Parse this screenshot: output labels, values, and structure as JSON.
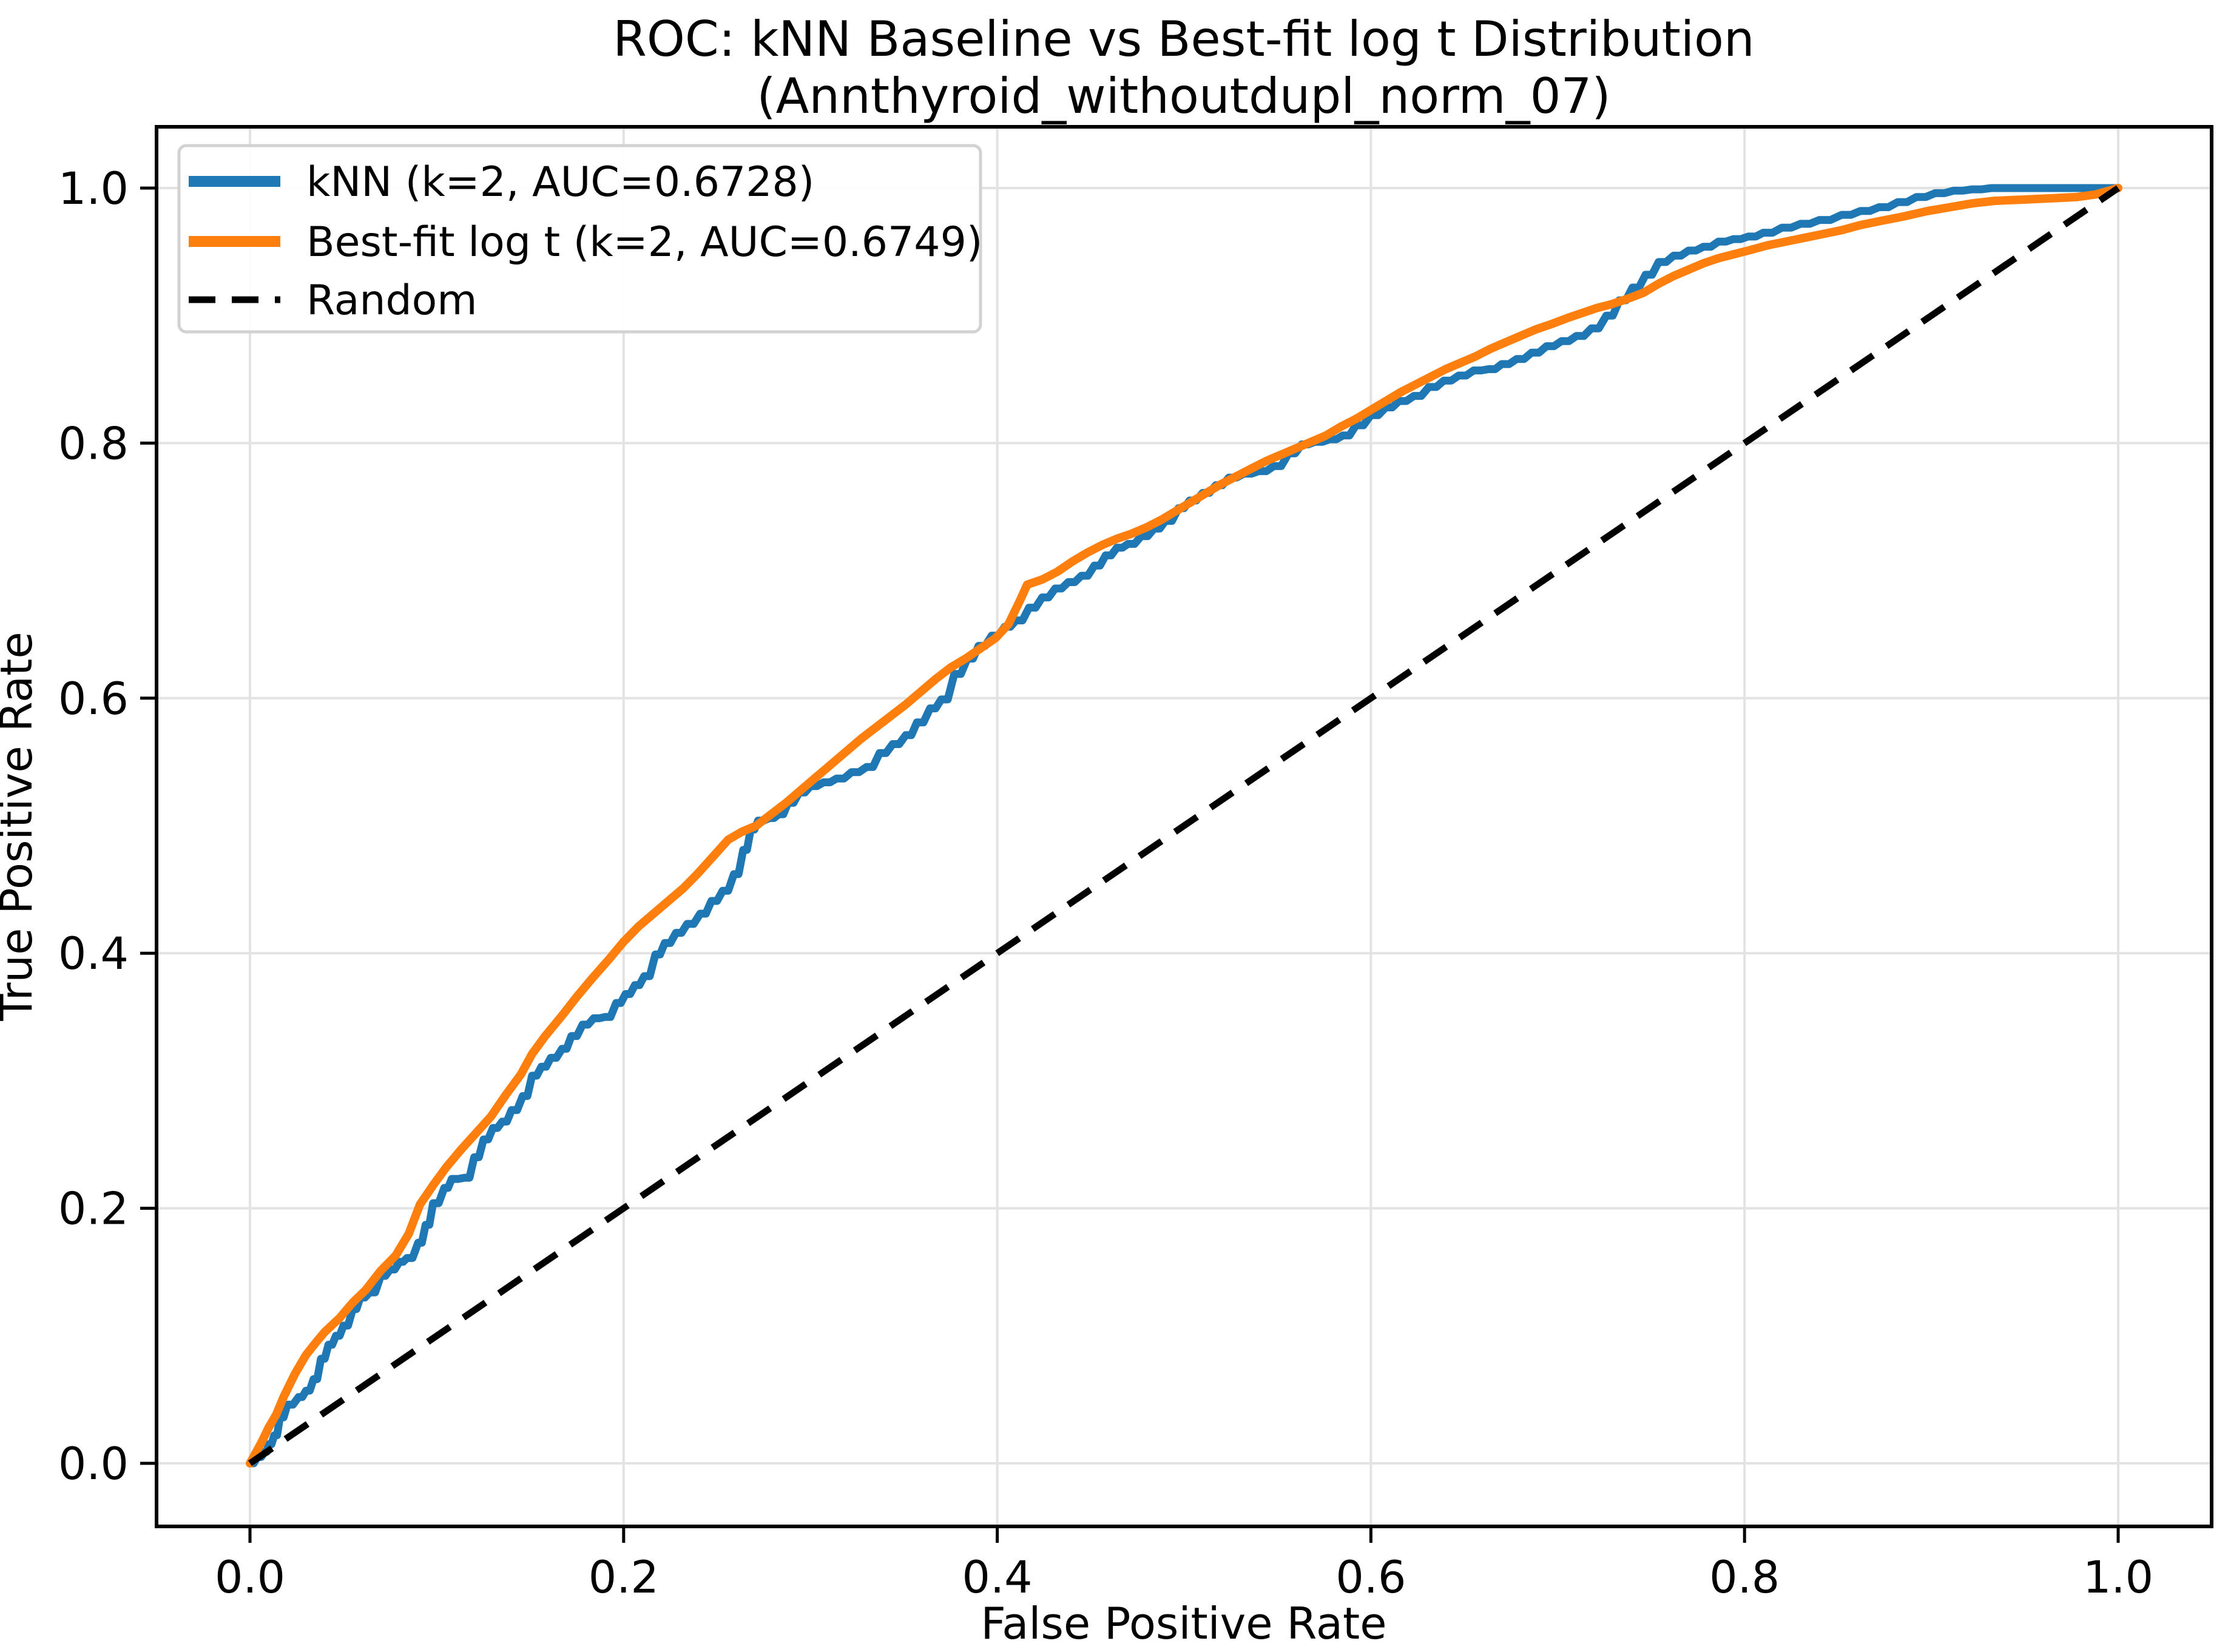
{
  "figure": {
    "title_line1": "ROC: kNN Baseline vs Best-fit log t Distribution",
    "title_line2": "(Annthyroid_withoutdupl_norm_07)"
  },
  "chart_data": {
    "type": "line",
    "title": "ROC: kNN Baseline vs Best-fit log t Distribution",
    "subtitle": "(Annthyroid_withoutdupl_norm_07)",
    "xlabel": "False Positive Rate",
    "ylabel": "True Positive Rate",
    "xlim": [
      -0.05,
      1.05
    ],
    "ylim": [
      -0.05,
      1.05
    ],
    "grid": true,
    "grid_color": "#e3e3e3",
    "background": "#ffffff",
    "legend_position": "upper left",
    "x_ticks": {
      "values": [
        0.0,
        0.2,
        0.4,
        0.6,
        0.8,
        1.0
      ],
      "labels": [
        "0.0",
        "0.2",
        "0.4",
        "0.6",
        "0.8",
        "1.0"
      ]
    },
    "y_ticks": {
      "values": [
        0.0,
        0.2,
        0.4,
        0.6,
        0.8,
        1.0
      ],
      "labels": [
        "0.0",
        "0.2",
        "0.4",
        "0.6",
        "0.8",
        "1.0"
      ]
    },
    "series": [
      {
        "name": "kNN",
        "label": "kNN (k=2, AUC=0.6728)",
        "k": 2,
        "auc": 0.6728,
        "color": "#1f77b4",
        "line_style": "solid",
        "texture": "steps",
        "points": [
          [
            0,
            0
          ],
          [
            0.004,
            0.005
          ],
          [
            0.008,
            0.009
          ],
          [
            0.01,
            0.015
          ],
          [
            0.013,
            0.022
          ],
          [
            0.016,
            0.036
          ],
          [
            0.02,
            0.046
          ],
          [
            0.026,
            0.052
          ],
          [
            0.03,
            0.057
          ],
          [
            0.034,
            0.066
          ],
          [
            0.038,
            0.082
          ],
          [
            0.042,
            0.093
          ],
          [
            0.046,
            0.1
          ],
          [
            0.05,
            0.108
          ],
          [
            0.055,
            0.121
          ],
          [
            0.059,
            0.13
          ],
          [
            0.064,
            0.134
          ],
          [
            0.07,
            0.147
          ],
          [
            0.075,
            0.152
          ],
          [
            0.08,
            0.158
          ],
          [
            0.084,
            0.161
          ],
          [
            0.09,
            0.173
          ],
          [
            0.094,
            0.187
          ],
          [
            0.098,
            0.204
          ],
          [
            0.104,
            0.216
          ],
          [
            0.108,
            0.223
          ],
          [
            0.115,
            0.224
          ],
          [
            0.12,
            0.24
          ],
          [
            0.125,
            0.254
          ],
          [
            0.13,
            0.263
          ],
          [
            0.135,
            0.268
          ],
          [
            0.14,
            0.277
          ],
          [
            0.146,
            0.288
          ],
          [
            0.151,
            0.304
          ],
          [
            0.156,
            0.311
          ],
          [
            0.161,
            0.318
          ],
          [
            0.167,
            0.325
          ],
          [
            0.172,
            0.335
          ],
          [
            0.178,
            0.344
          ],
          [
            0.184,
            0.349
          ],
          [
            0.19,
            0.35
          ],
          [
            0.196,
            0.361
          ],
          [
            0.201,
            0.368
          ],
          [
            0.206,
            0.375
          ],
          [
            0.211,
            0.382
          ],
          [
            0.217,
            0.399
          ],
          [
            0.222,
            0.408
          ],
          [
            0.228,
            0.416
          ],
          [
            0.234,
            0.423
          ],
          [
            0.241,
            0.431
          ],
          [
            0.247,
            0.441
          ],
          [
            0.253,
            0.449
          ],
          [
            0.259,
            0.462
          ],
          [
            0.264,
            0.481
          ],
          [
            0.268,
            0.497
          ],
          [
            0.272,
            0.504
          ],
          [
            0.278,
            0.506
          ],
          [
            0.283,
            0.509
          ],
          [
            0.288,
            0.518
          ],
          [
            0.294,
            0.526
          ],
          [
            0.3,
            0.531
          ],
          [
            0.307,
            0.534
          ],
          [
            0.314,
            0.537
          ],
          [
            0.322,
            0.542
          ],
          [
            0.33,
            0.546
          ],
          [
            0.337,
            0.557
          ],
          [
            0.344,
            0.564
          ],
          [
            0.351,
            0.571
          ],
          [
            0.357,
            0.581
          ],
          [
            0.364,
            0.592
          ],
          [
            0.37,
            0.599
          ],
          [
            0.377,
            0.619
          ],
          [
            0.384,
            0.631
          ],
          [
            0.39,
            0.641
          ],
          [
            0.397,
            0.649
          ],
          [
            0.404,
            0.656
          ],
          [
            0.41,
            0.661
          ],
          [
            0.417,
            0.671
          ],
          [
            0.424,
            0.679
          ],
          [
            0.431,
            0.686
          ],
          [
            0.438,
            0.691
          ],
          [
            0.445,
            0.696
          ],
          [
            0.452,
            0.704
          ],
          [
            0.458,
            0.712
          ],
          [
            0.464,
            0.718
          ],
          [
            0.47,
            0.721
          ],
          [
            0.477,
            0.727
          ],
          [
            0.484,
            0.733
          ],
          [
            0.49,
            0.739
          ],
          [
            0.497,
            0.749
          ],
          [
            0.503,
            0.755
          ],
          [
            0.51,
            0.761
          ],
          [
            0.517,
            0.767
          ],
          [
            0.524,
            0.773
          ],
          [
            0.532,
            0.776
          ],
          [
            0.54,
            0.778
          ],
          [
            0.548,
            0.782
          ],
          [
            0.556,
            0.792
          ],
          [
            0.563,
            0.799
          ],
          [
            0.57,
            0.801
          ],
          [
            0.578,
            0.803
          ],
          [
            0.585,
            0.806
          ],
          [
            0.592,
            0.814
          ],
          [
            0.6,
            0.822
          ],
          [
            0.608,
            0.828
          ],
          [
            0.615,
            0.833
          ],
          [
            0.623,
            0.837
          ],
          [
            0.631,
            0.844
          ],
          [
            0.639,
            0.849
          ],
          [
            0.647,
            0.853
          ],
          [
            0.655,
            0.857
          ],
          [
            0.663,
            0.858
          ],
          [
            0.67,
            0.862
          ],
          [
            0.678,
            0.866
          ],
          [
            0.686,
            0.871
          ],
          [
            0.694,
            0.876
          ],
          [
            0.702,
            0.88
          ],
          [
            0.71,
            0.884
          ],
          [
            0.718,
            0.89
          ],
          [
            0.726,
            0.9
          ],
          [
            0.733,
            0.912
          ],
          [
            0.74,
            0.922
          ],
          [
            0.747,
            0.932
          ],
          [
            0.754,
            0.942
          ],
          [
            0.762,
            0.947
          ],
          [
            0.77,
            0.951
          ],
          [
            0.778,
            0.954
          ],
          [
            0.786,
            0.958
          ],
          [
            0.794,
            0.96
          ],
          [
            0.802,
            0.962
          ],
          [
            0.81,
            0.965
          ],
          [
            0.82,
            0.969
          ],
          [
            0.83,
            0.972
          ],
          [
            0.84,
            0.975
          ],
          [
            0.852,
            0.979
          ],
          [
            0.862,
            0.982
          ],
          [
            0.872,
            0.985
          ],
          [
            0.882,
            0.989
          ],
          [
            0.892,
            0.993
          ],
          [
            0.902,
            0.996
          ],
          [
            0.912,
            0.998
          ],
          [
            0.922,
            0.999
          ],
          [
            0.932,
            1.0
          ],
          [
            1.0,
            1.0
          ]
        ]
      },
      {
        "name": "Best-fit log t",
        "label": "Best-fit log t (k=2, AUC=0.6749)",
        "k": 2,
        "auc": 0.6749,
        "color": "#ff7f0e",
        "line_style": "solid",
        "texture": "smooth",
        "points": [
          [
            0,
            0
          ],
          [
            0.006,
            0.016
          ],
          [
            0.01,
            0.028
          ],
          [
            0.014,
            0.038
          ],
          [
            0.018,
            0.052
          ],
          [
            0.024,
            0.07
          ],
          [
            0.03,
            0.085
          ],
          [
            0.036,
            0.096
          ],
          [
            0.04,
            0.103
          ],
          [
            0.048,
            0.114
          ],
          [
            0.055,
            0.126
          ],
          [
            0.062,
            0.136
          ],
          [
            0.07,
            0.151
          ],
          [
            0.078,
            0.163
          ],
          [
            0.085,
            0.18
          ],
          [
            0.091,
            0.203
          ],
          [
            0.098,
            0.218
          ],
          [
            0.105,
            0.232
          ],
          [
            0.113,
            0.246
          ],
          [
            0.121,
            0.259
          ],
          [
            0.129,
            0.272
          ],
          [
            0.137,
            0.289
          ],
          [
            0.145,
            0.305
          ],
          [
            0.151,
            0.321
          ],
          [
            0.158,
            0.335
          ],
          [
            0.167,
            0.351
          ],
          [
            0.175,
            0.366
          ],
          [
            0.183,
            0.38
          ],
          [
            0.192,
            0.395
          ],
          [
            0.2,
            0.409
          ],
          [
            0.208,
            0.421
          ],
          [
            0.216,
            0.431
          ],
          [
            0.224,
            0.441
          ],
          [
            0.232,
            0.451
          ],
          [
            0.24,
            0.463
          ],
          [
            0.248,
            0.476
          ],
          [
            0.256,
            0.489
          ],
          [
            0.263,
            0.495
          ],
          [
            0.271,
            0.5
          ],
          [
            0.279,
            0.509
          ],
          [
            0.287,
            0.518
          ],
          [
            0.295,
            0.528
          ],
          [
            0.303,
            0.538
          ],
          [
            0.311,
            0.548
          ],
          [
            0.319,
            0.558
          ],
          [
            0.327,
            0.568
          ],
          [
            0.335,
            0.577
          ],
          [
            0.343,
            0.586
          ],
          [
            0.351,
            0.595
          ],
          [
            0.359,
            0.605
          ],
          [
            0.367,
            0.615
          ],
          [
            0.375,
            0.624
          ],
          [
            0.383,
            0.631
          ],
          [
            0.391,
            0.639
          ],
          [
            0.399,
            0.647
          ],
          [
            0.406,
            0.658
          ],
          [
            0.412,
            0.676
          ],
          [
            0.416,
            0.689
          ],
          [
            0.424,
            0.693
          ],
          [
            0.432,
            0.699
          ],
          [
            0.44,
            0.707
          ],
          [
            0.448,
            0.714
          ],
          [
            0.456,
            0.72
          ],
          [
            0.464,
            0.725
          ],
          [
            0.472,
            0.729
          ],
          [
            0.48,
            0.734
          ],
          [
            0.488,
            0.74
          ],
          [
            0.496,
            0.747
          ],
          [
            0.504,
            0.754
          ],
          [
            0.512,
            0.761
          ],
          [
            0.52,
            0.768
          ],
          [
            0.528,
            0.774
          ],
          [
            0.536,
            0.78
          ],
          [
            0.544,
            0.786
          ],
          [
            0.552,
            0.791
          ],
          [
            0.56,
            0.796
          ],
          [
            0.568,
            0.801
          ],
          [
            0.576,
            0.806
          ],
          [
            0.584,
            0.813
          ],
          [
            0.592,
            0.819
          ],
          [
            0.6,
            0.826
          ],
          [
            0.608,
            0.833
          ],
          [
            0.616,
            0.84
          ],
          [
            0.624,
            0.846
          ],
          [
            0.632,
            0.852
          ],
          [
            0.64,
            0.858
          ],
          [
            0.648,
            0.863
          ],
          [
            0.656,
            0.868
          ],
          [
            0.664,
            0.874
          ],
          [
            0.672,
            0.879
          ],
          [
            0.68,
            0.884
          ],
          [
            0.688,
            0.889
          ],
          [
            0.696,
            0.893
          ],
          [
            0.705,
            0.898
          ],
          [
            0.713,
            0.902
          ],
          [
            0.721,
            0.906
          ],
          [
            0.729,
            0.909
          ],
          [
            0.737,
            0.913
          ],
          [
            0.746,
            0.918
          ],
          [
            0.754,
            0.925
          ],
          [
            0.762,
            0.931
          ],
          [
            0.77,
            0.936
          ],
          [
            0.778,
            0.941
          ],
          [
            0.786,
            0.945
          ],
          [
            0.794,
            0.948
          ],
          [
            0.802,
            0.951
          ],
          [
            0.812,
            0.955
          ],
          [
            0.822,
            0.958
          ],
          [
            0.832,
            0.961
          ],
          [
            0.842,
            0.964
          ],
          [
            0.852,
            0.967
          ],
          [
            0.862,
            0.971
          ],
          [
            0.872,
            0.974
          ],
          [
            0.886,
            0.978
          ],
          [
            0.898,
            0.982
          ],
          [
            0.91,
            0.985
          ],
          [
            0.922,
            0.988
          ],
          [
            0.934,
            0.99
          ],
          [
            0.95,
            0.991
          ],
          [
            0.965,
            0.992
          ],
          [
            0.978,
            0.993
          ],
          [
            0.988,
            0.995
          ],
          [
            1.0,
            1.0
          ]
        ]
      },
      {
        "name": "Random",
        "label": "Random",
        "color": "#000000",
        "line_style": "dashed",
        "texture": "smooth",
        "points": [
          [
            0,
            0
          ],
          [
            1,
            1
          ]
        ]
      }
    ]
  }
}
